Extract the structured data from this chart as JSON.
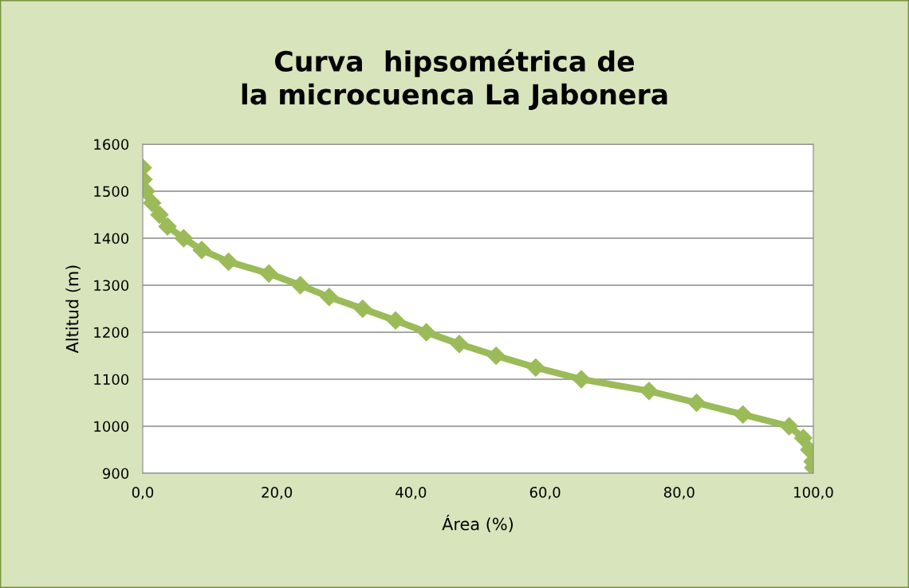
{
  "chart_data": {
    "type": "line",
    "title": "Curva  hipsométrica de\nla microcuenca La Jabonera",
    "xlabel": "Área (%)",
    "ylabel": "Altitud (m)",
    "x": [
      0,
      0.1,
      0.5,
      1.4,
      2.5,
      3.7,
      6.1,
      8.8,
      12.8,
      18.8,
      23.5,
      27.8,
      32.8,
      37.7,
      42.3,
      47.2,
      52.7,
      58.6,
      65.4,
      75.5,
      82.6,
      89.5,
      96.4,
      98.5,
      99.4,
      99.9,
      100
    ],
    "series": [
      {
        "color": "#9bbb59",
        "values": [
          1550,
          1525,
          1500,
          1475,
          1450,
          1425,
          1400,
          1375,
          1350,
          1325,
          1300,
          1275,
          1250,
          1225,
          1200,
          1175,
          1150,
          1125,
          1100,
          1075,
          1050,
          1025,
          1000,
          975,
          950,
          925,
          912
        ]
      }
    ],
    "xlim": [
      0,
      100
    ],
    "xticks": [
      {
        "value": 0,
        "label": "0,0"
      },
      {
        "value": 20,
        "label": "20,0"
      },
      {
        "value": 40,
        "label": "40,0"
      },
      {
        "value": 60,
        "label": "60,0"
      },
      {
        "value": 80,
        "label": "80,0"
      },
      {
        "value": 100,
        "label": "100,0"
      }
    ],
    "ylim": [
      900,
      1600
    ],
    "yticks": [
      900,
      1000,
      1100,
      1200,
      1300,
      1400,
      1500,
      1600
    ],
    "grid": "y",
    "marker": "diamond",
    "line_style": "solid",
    "legend": false
  }
}
